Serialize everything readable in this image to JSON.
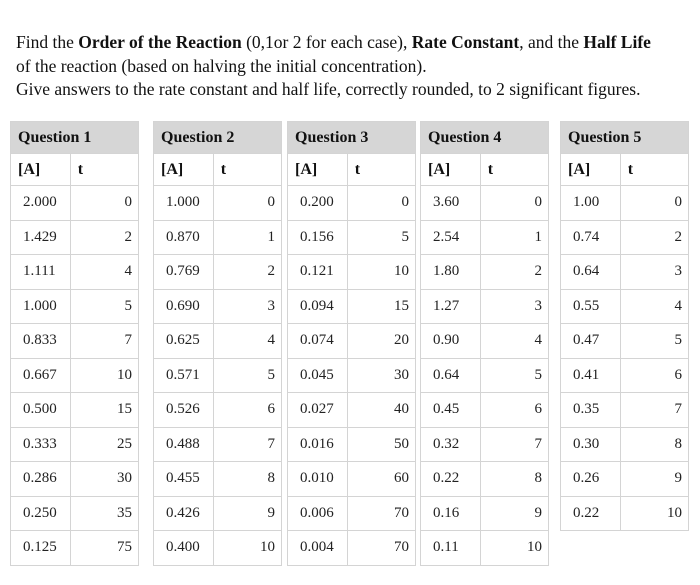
{
  "intro": {
    "l1_a": "Find the ",
    "l1_b": "Order of the Reaction",
    "l1_c": " (0,1or 2 for each case), ",
    "l1_d": "Rate Constant",
    "l1_e": ", and the ",
    "l1_f": "Half Life",
    "l2": "of the reaction (based on halving the initial concentration).",
    "l3": "Give answers to the rate constant and half life, correctly rounded, to 2 significant figures."
  },
  "questions": [
    {
      "title": "Question 1",
      "conc_header": "[A]",
      "time_header": "t",
      "rows": [
        [
          "2.000",
          "0"
        ],
        [
          "1.429",
          "2"
        ],
        [
          "1.111",
          "4"
        ],
        [
          "1.000",
          "5"
        ],
        [
          "0.833",
          "7"
        ],
        [
          "0.667",
          "10"
        ],
        [
          "0.500",
          "15"
        ],
        [
          "0.333",
          "25"
        ],
        [
          "0.286",
          "30"
        ],
        [
          "0.250",
          "35"
        ],
        [
          "0.125",
          "75"
        ]
      ]
    },
    {
      "title": "Question 2",
      "conc_header": "[A]",
      "time_header": "t",
      "rows": [
        [
          "1.000",
          "0"
        ],
        [
          "0.870",
          "1"
        ],
        [
          "0.769",
          "2"
        ],
        [
          "0.690",
          "3"
        ],
        [
          "0.625",
          "4"
        ],
        [
          "0.571",
          "5"
        ],
        [
          "0.526",
          "6"
        ],
        [
          "0.488",
          "7"
        ],
        [
          "0.455",
          "8"
        ],
        [
          "0.426",
          "9"
        ],
        [
          "0.400",
          "10"
        ]
      ]
    },
    {
      "title": "Question 3",
      "conc_header": "[A]",
      "time_header": "t",
      "rows": [
        [
          "0.200",
          "0"
        ],
        [
          "0.156",
          "5"
        ],
        [
          "0.121",
          "10"
        ],
        [
          "0.094",
          "15"
        ],
        [
          "0.074",
          "20"
        ],
        [
          "0.045",
          "30"
        ],
        [
          "0.027",
          "40"
        ],
        [
          "0.016",
          "50"
        ],
        [
          "0.010",
          "60"
        ],
        [
          "0.006",
          "70"
        ],
        [
          "0.004",
          "70"
        ]
      ]
    },
    {
      "title": "Question 4",
      "conc_header": "[A]",
      "time_header": "t",
      "rows": [
        [
          "3.60",
          "0"
        ],
        [
          "2.54",
          "1"
        ],
        [
          "1.80",
          "2"
        ],
        [
          "1.27",
          "3"
        ],
        [
          "0.90",
          "4"
        ],
        [
          "0.64",
          "5"
        ],
        [
          "0.45",
          "6"
        ],
        [
          "0.32",
          "7"
        ],
        [
          "0.22",
          "8"
        ],
        [
          "0.16",
          "9"
        ],
        [
          "0.11",
          "10"
        ]
      ]
    },
    {
      "title": "Question 5",
      "conc_header": "[A]",
      "time_header": "t",
      "rows": [
        [
          "1.00",
          "0"
        ],
        [
          "0.74",
          "2"
        ],
        [
          "0.64",
          "3"
        ],
        [
          "0.55",
          "4"
        ],
        [
          "0.47",
          "5"
        ],
        [
          "0.41",
          "6"
        ],
        [
          "0.35",
          "7"
        ],
        [
          "0.30",
          "8"
        ],
        [
          "0.26",
          "9"
        ],
        [
          "0.22",
          "10"
        ]
      ]
    }
  ]
}
